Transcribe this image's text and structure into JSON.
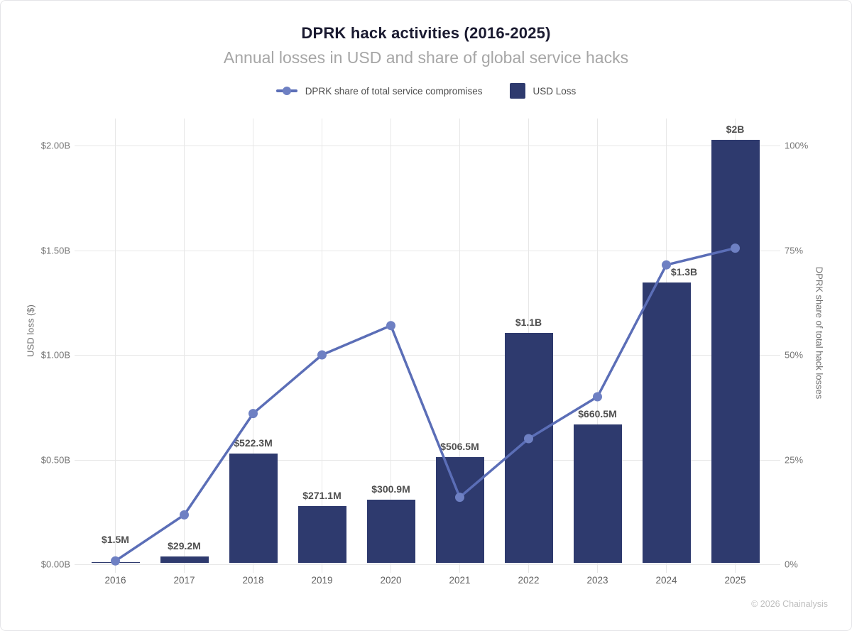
{
  "header": {
    "title": "DPRK hack activities (2016-2025)",
    "subtitle": "Annual losses in USD and share of global service hacks"
  },
  "legend": {
    "items": [
      {
        "label": "DPRK share of total service compromises",
        "marker": "line-dot-icon",
        "color": "#5b6eb7"
      },
      {
        "label": "USD Loss",
        "marker": "square-swatch-icon",
        "color": "#2e3a6e"
      }
    ]
  },
  "footer": {
    "copyright": "© 2026 Chainalysis"
  },
  "colors": {
    "bar": "#2e3a6e",
    "line": "#5b6eb7",
    "marker": "#6e80c3",
    "grid": "#e7e7e7",
    "bar_label": "#4f4f4f"
  },
  "chart_data": {
    "type": "bar",
    "subtype": "combo-bar-line-dual-axis",
    "title": "DPRK hack activities (2016-2025)",
    "subtitle": "Annual losses in USD and share of global service hacks",
    "categories": [
      "2016",
      "2017",
      "2018",
      "2019",
      "2020",
      "2021",
      "2022",
      "2023",
      "2024",
      "2025"
    ],
    "series": [
      {
        "name": "USD Loss",
        "type": "bar",
        "axis": "left",
        "values_usd_millions": [
          1.5,
          29.2,
          522.3,
          271.1,
          300.9,
          506.5,
          1100,
          660.5,
          1340,
          2020
        ],
        "data_labels": [
          "$1.5M",
          "$29.2M",
          "$522.3M",
          "$271.1M",
          "$300.9M",
          "$506.5M",
          "$1.1B",
          "$660.5M",
          "$1.3B",
          "$2B"
        ]
      },
      {
        "name": "DPRK share of total service compromises",
        "type": "line",
        "axis": "right",
        "values_percent": [
          0.8,
          11.8,
          36,
          50,
          57,
          16,
          30,
          40,
          71.5,
          75.5
        ]
      }
    ],
    "left_axis": {
      "title": "USD loss ($)",
      "ticks": [
        "$2.00B",
        "$1.50B",
        "$1.00B",
        "$0.50B",
        "$0.00B"
      ],
      "range_usd_billions": [
        0,
        2
      ]
    },
    "right_axis": {
      "title": "DPRK share of total hack losses",
      "ticks": [
        "100%",
        "75%",
        "50%",
        "25%",
        "0%"
      ],
      "range_percent": [
        0,
        100
      ]
    },
    "grid": true,
    "legend_position": "top"
  }
}
